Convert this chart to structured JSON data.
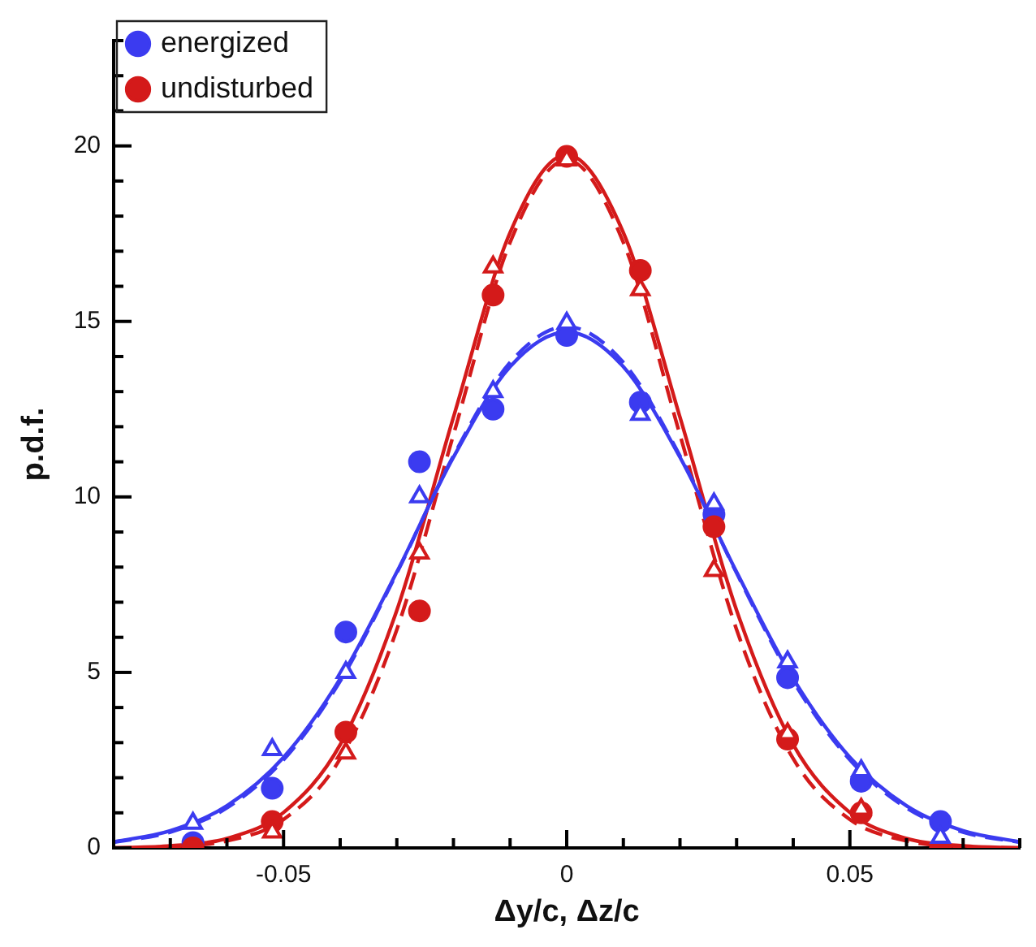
{
  "chart_data": {
    "type": "scatter",
    "xlabel": "Δy/c, Δz/c",
    "ylabel": "p.d.f.",
    "xlim": [
      -0.08,
      0.08
    ],
    "ylim": [
      0,
      23
    ],
    "xticks": [
      {
        "value": -0.08,
        "label": null
      },
      {
        "value": -0.07,
        "label": null
      },
      {
        "value": -0.06,
        "label": null
      },
      -0.05,
      {
        "value": -0.04,
        "label": null
      },
      {
        "value": -0.03,
        "label": null
      },
      {
        "value": -0.02,
        "label": null
      },
      {
        "value": -0.01,
        "label": null
      },
      0,
      {
        "value": 0.01,
        "label": null
      },
      {
        "value": 0.02,
        "label": null
      },
      {
        "value": 0.03,
        "label": null
      },
      {
        "value": 0.04,
        "label": null
      },
      0.05,
      {
        "value": 0.06,
        "label": null
      },
      {
        "value": 0.07,
        "label": null
      },
      {
        "value": 0.08,
        "label": null
      }
    ],
    "yticks": [
      0,
      {
        "value": 1,
        "label": null
      },
      {
        "value": 2,
        "label": null
      },
      {
        "value": 3,
        "label": null
      },
      {
        "value": 4,
        "label": null
      },
      5,
      {
        "value": 6,
        "label": null
      },
      {
        "value": 7,
        "label": null
      },
      {
        "value": 8,
        "label": null
      },
      {
        "value": 9,
        "label": null
      },
      10,
      {
        "value": 11,
        "label": null
      },
      {
        "value": 12,
        "label": null
      },
      {
        "value": 13,
        "label": null
      },
      {
        "value": 14,
        "label": null
      },
      15,
      {
        "value": 16,
        "label": null
      },
      {
        "value": 17,
        "label": null
      },
      {
        "value": 18,
        "label": null
      },
      {
        "value": 19,
        "label": null
      },
      20,
      {
        "value": 21,
        "label": null
      },
      {
        "value": 22,
        "label": null
      },
      {
        "value": 23,
        "label": null
      }
    ],
    "legend": "top left",
    "series": [
      {
        "name": "energized",
        "marker": "circle",
        "color": "#3b3bf0",
        "x": [
          -0.066,
          -0.052,
          -0.039,
          -0.026,
          -0.013,
          0,
          0.013,
          0.026,
          0.039,
          0.052,
          0.066
        ],
        "values": [
          0.15,
          1.7,
          6.15,
          11.0,
          12.5,
          14.6,
          12.7,
          9.5,
          4.85,
          1.9,
          0.75
        ]
      },
      {
        "name": "undisturbed",
        "marker": "circle",
        "color": "#d41a1a",
        "x": [
          -0.066,
          -0.052,
          -0.039,
          -0.026,
          -0.013,
          0,
          0.013,
          0.026,
          0.039,
          0.052,
          0.066
        ],
        "values": [
          0.0,
          0.75,
          3.3,
          6.75,
          15.75,
          19.7,
          16.45,
          9.15,
          3.1,
          1.0,
          0.0
        ]
      },
      {
        "marker": "triangle",
        "color": "#3b3bf0",
        "x": [
          -0.066,
          -0.052,
          -0.039,
          -0.026,
          -0.013,
          0,
          0.013,
          0.026,
          0.039,
          0.052,
          0.066
        ],
        "values": [
          0.7,
          2.8,
          5.0,
          10.0,
          13.0,
          14.95,
          12.35,
          9.8,
          5.3,
          2.2,
          0.3
        ]
      },
      {
        "marker": "triangle",
        "color": "#d41a1a",
        "x": [
          -0.052,
          -0.039,
          -0.026,
          -0.013,
          0,
          0.013,
          0.026,
          0.039,
          0.052
        ],
        "values": [
          0.45,
          2.7,
          8.4,
          16.55,
          19.6,
          15.9,
          7.9,
          3.25,
          1.1
        ]
      },
      {
        "type": "line",
        "marker": "none",
        "line_style": "solid",
        "color": "#3b3bf0",
        "x": [
          -0.08,
          -0.07,
          -0.06,
          -0.05,
          -0.04,
          -0.03,
          -0.02,
          -0.01,
          0,
          0.01,
          0.02,
          0.03,
          0.04,
          0.05,
          0.06,
          0.07,
          0.08
        ],
        "values": [
          0.17,
          0.49,
          1.2,
          2.58,
          4.82,
          7.86,
          11.13,
          13.71,
          14.7,
          13.71,
          11.13,
          7.86,
          4.82,
          2.58,
          1.2,
          0.49,
          0.17
        ]
      },
      {
        "type": "line",
        "marker": "none",
        "line_style": "dashed",
        "color": "#3b3bf0",
        "x": [
          -0.08,
          -0.07,
          -0.06,
          -0.05,
          -0.04,
          -0.03,
          -0.02,
          -0.01,
          0,
          0.01,
          0.02,
          0.03,
          0.04,
          0.05,
          0.06,
          0.07,
          0.08
        ],
        "values": [
          0.16,
          0.45,
          1.14,
          2.51,
          4.75,
          7.83,
          11.17,
          13.83,
          14.85,
          13.83,
          11.17,
          7.83,
          4.75,
          2.51,
          1.14,
          0.45,
          0.16
        ]
      },
      {
        "type": "line",
        "marker": "none",
        "line_style": "solid",
        "color": "#d41a1a",
        "x": [
          -0.08,
          -0.07,
          -0.06,
          -0.05,
          -0.04,
          -0.03,
          -0.02,
          -0.01,
          0,
          0.01,
          0.02,
          0.03,
          0.04,
          0.05,
          0.06,
          0.07,
          0.08
        ],
        "values": [
          0.0,
          0.06,
          0.27,
          1.01,
          2.94,
          6.77,
          12.27,
          17.53,
          19.75,
          17.53,
          12.27,
          6.77,
          2.94,
          1.01,
          0.27,
          0.06,
          0.0
        ]
      },
      {
        "type": "line",
        "marker": "none",
        "line_style": "dashed",
        "color": "#d41a1a",
        "x": [
          -0.08,
          -0.07,
          -0.06,
          -0.05,
          -0.04,
          -0.03,
          -0.02,
          -0.01,
          0,
          0.01,
          0.02,
          0.03,
          0.04,
          0.05,
          0.06,
          0.07,
          0.08
        ],
        "values": [
          0.0,
          0.04,
          0.2,
          0.81,
          2.54,
          6.22,
          11.77,
          17.25,
          19.6,
          17.25,
          11.77,
          6.22,
          2.54,
          0.81,
          0.2,
          0.04,
          0.0
        ]
      }
    ]
  }
}
